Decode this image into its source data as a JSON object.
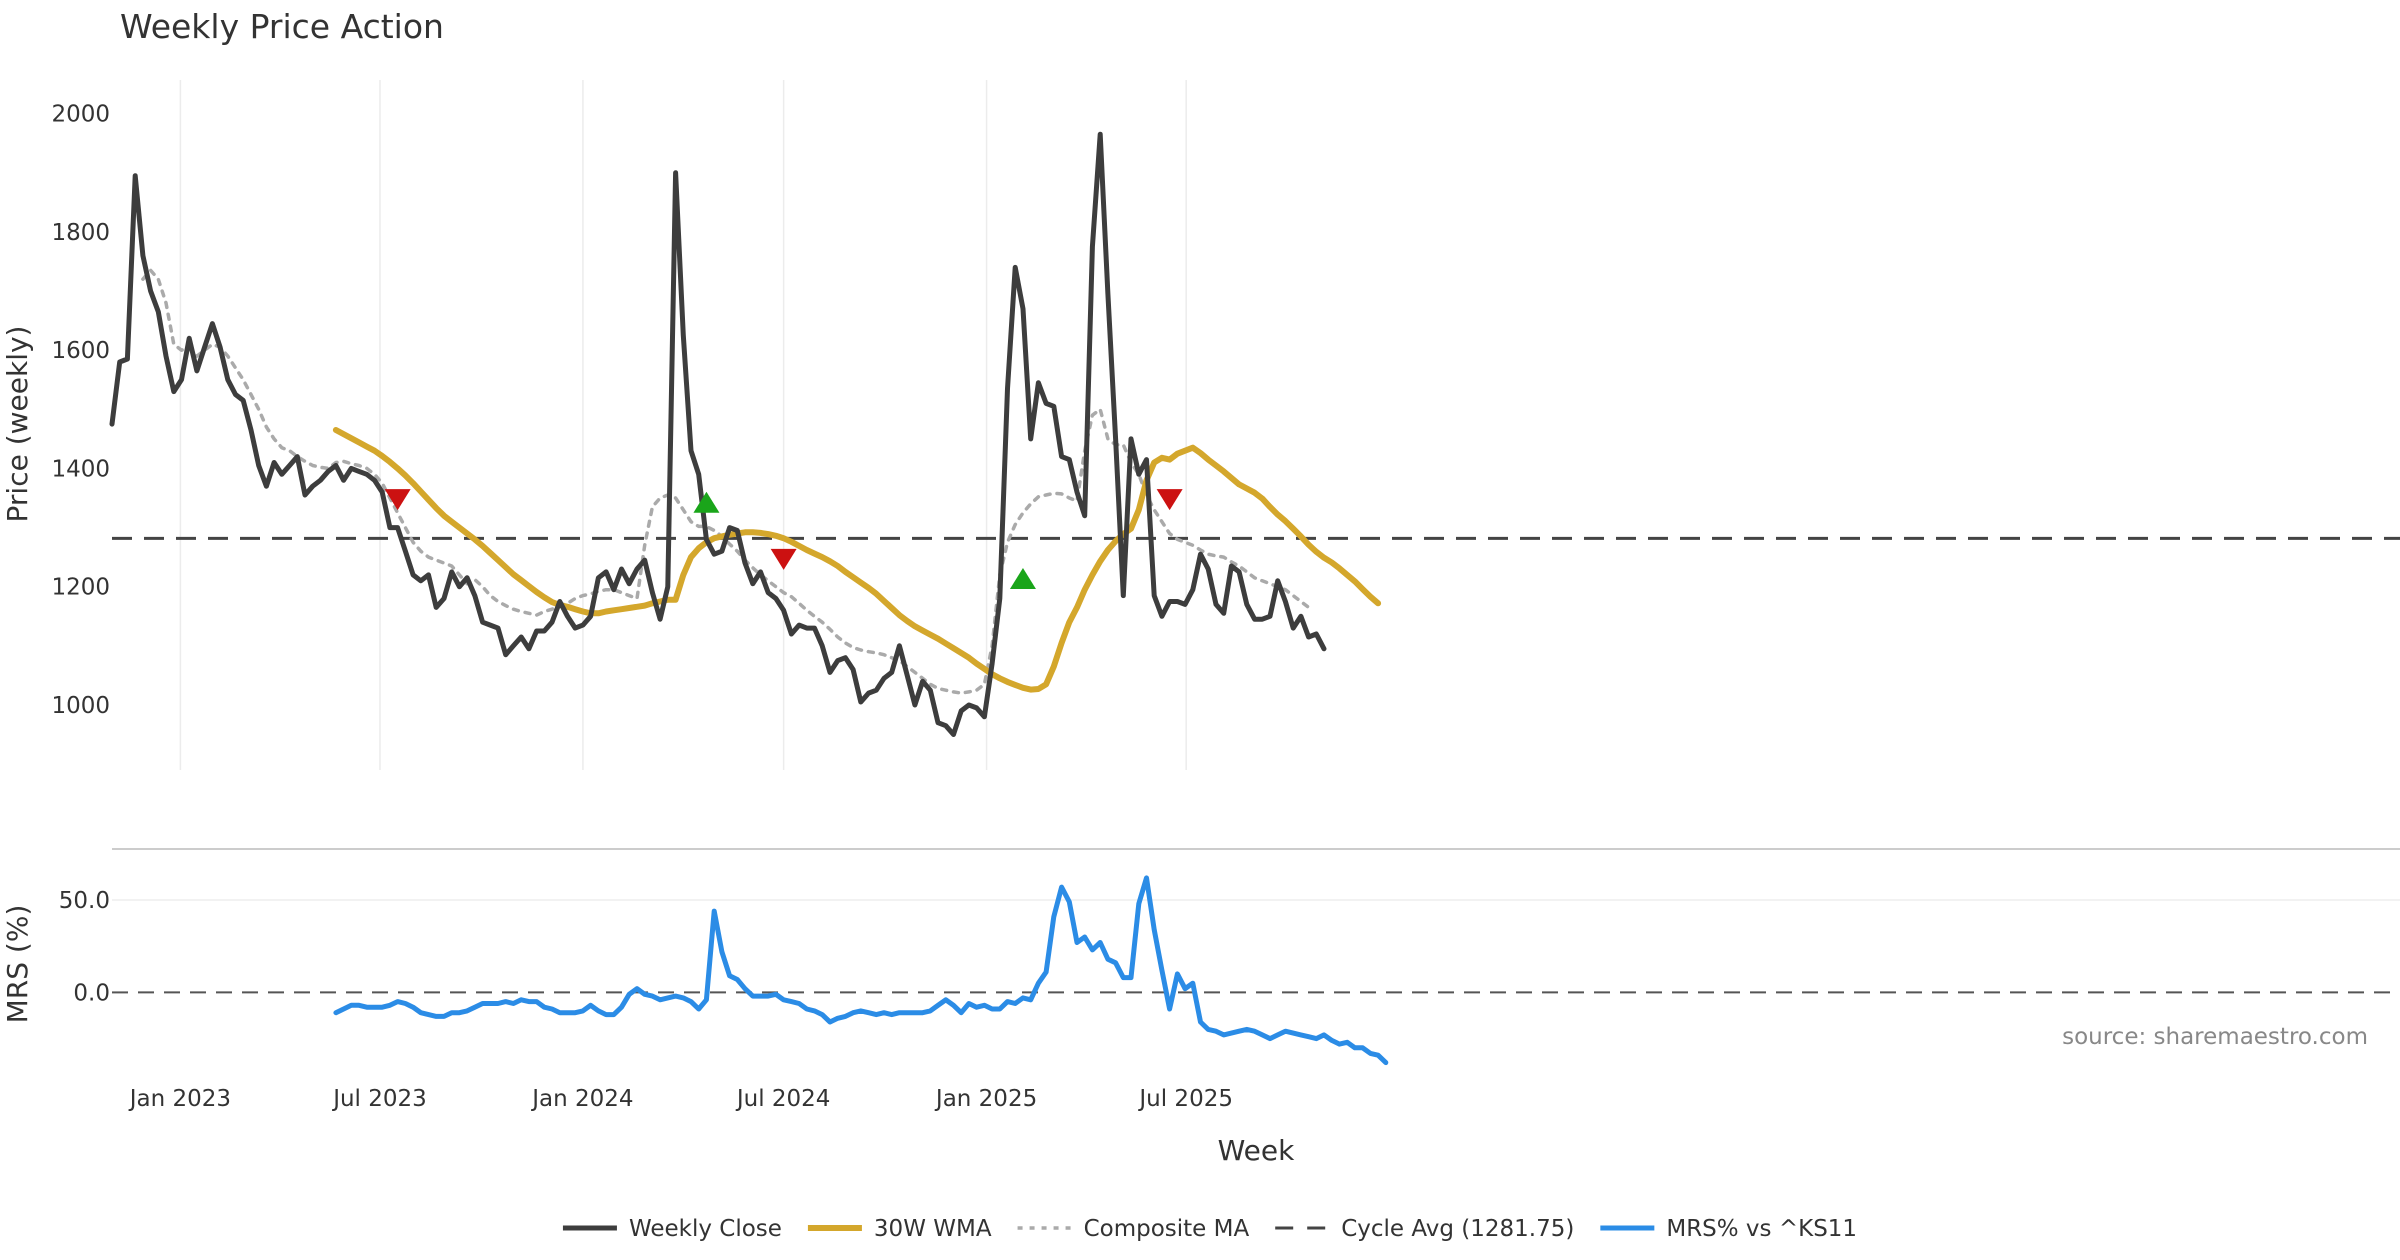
{
  "chart_data": {
    "type": "line",
    "title": "Weekly Price Action",
    "xlabel": "Week",
    "source_note": "source: sharemaestro.com",
    "x_ticks": [
      "Jan 2023",
      "Jul 2023",
      "Jan 2024",
      "Jul 2024",
      "Jan 2025",
      "Jul 2025"
    ],
    "week_start": "2022-10-31",
    "price_panel": {
      "ylabel": "Price (weekly)",
      "y_ticks": [
        "1000",
        "1200",
        "1400",
        "1600",
        "1800",
        "2000"
      ],
      "ylim": [
        890,
        2040
      ],
      "grid": "vertical"
    },
    "mrs_panel": {
      "ylabel": "MRS (%)",
      "y_ticks": [
        "0.0",
        "50.0"
      ],
      "ylim": [
        -42,
        76
      ],
      "zero_line": 0
    },
    "colors": {
      "weekly_close": "#3d3d3d",
      "wma": "#d4a72c",
      "composite": "#aaaaaa",
      "cycle_avg": "#444444",
      "mrs": "#2b8ce6",
      "buy_marker": "#1aa51a",
      "sell_marker": "#cc1111"
    },
    "legend": [
      {
        "key": "weekly_close",
        "label": "Weekly Close",
        "style": "solid"
      },
      {
        "key": "wma",
        "label": "30W WMA",
        "style": "solid"
      },
      {
        "key": "composite",
        "label": "Composite MA",
        "style": "dotted"
      },
      {
        "key": "cycle_avg",
        "label": "Cycle Avg (1281.75)",
        "style": "dashed"
      },
      {
        "key": "mrs",
        "label": "MRS% vs ^KS11",
        "style": "solid"
      }
    ],
    "cycle_avg": 1281.75,
    "series": [
      {
        "name": "Weekly Close",
        "values": [
          1475,
          1580,
          1585,
          1895,
          1760,
          1700,
          1665,
          1590,
          1530,
          1550,
          1620,
          1565,
          1605,
          1645,
          1605,
          1550,
          1525,
          1515,
          1465,
          1405,
          1370,
          1410,
          1390,
          1405,
          1420,
          1355,
          1370,
          1380,
          1395,
          1405,
          1380,
          1400,
          1395,
          1390,
          1380,
          1360,
          1300,
          1300,
          1260,
          1220,
          1210,
          1220,
          1165,
          1180,
          1225,
          1200,
          1215,
          1185,
          1140,
          1135,
          1130,
          1085,
          1100,
          1115,
          1095,
          1125,
          1125,
          1140,
          1175,
          1150,
          1130,
          1135,
          1150,
          1215,
          1225,
          1195,
          1230,
          1205,
          1230,
          1245,
          1190,
          1145,
          1200,
          1900,
          1625,
          1430,
          1390,
          1280,
          1255,
          1260,
          1300,
          1295,
          1240,
          1205,
          1225,
          1190,
          1180,
          1160,
          1120,
          1135,
          1130,
          1130,
          1100,
          1055,
          1075,
          1080,
          1060,
          1005,
          1020,
          1025,
          1045,
          1055,
          1100,
          1050,
          1000,
          1040,
          1025,
          970,
          965,
          950,
          990,
          1000,
          995,
          980,
          1070,
          1180,
          1535,
          1740,
          1670,
          1450,
          1545,
          1510,
          1505,
          1420,
          1415,
          1360,
          1320,
          1775,
          1965,
          1695,
          1450,
          1185,
          1450,
          1390,
          1415,
          1185,
          1150,
          1175,
          1175,
          1170,
          1195,
          1255,
          1230,
          1170,
          1155,
          1235,
          1225,
          1170,
          1145,
          1145,
          1150,
          1210,
          1175,
          1130,
          1150,
          1115,
          1120,
          1095
        ]
      },
      {
        "name": "30W WMA",
        "start_index": 29,
        "values": [
          1465,
          1458,
          1451,
          1444,
          1437,
          1430,
          1421,
          1411,
          1400,
          1388,
          1375,
          1361,
          1347,
          1333,
          1320,
          1310,
          1300,
          1290,
          1280,
          1269,
          1257,
          1245,
          1233,
          1221,
          1211,
          1201,
          1191,
          1182,
          1174,
          1169,
          1166,
          1162,
          1158,
          1155,
          1155,
          1158,
          1160,
          1162,
          1164,
          1166,
          1168,
          1172,
          1175,
          1178,
          1178,
          1220,
          1250,
          1265,
          1275,
          1282,
          1285,
          1288,
          1290,
          1292,
          1292,
          1291,
          1289,
          1286,
          1282,
          1276,
          1269,
          1262,
          1256,
          1250,
          1243,
          1235,
          1225,
          1216,
          1207,
          1198,
          1188,
          1176,
          1164,
          1152,
          1142,
          1133,
          1126,
          1119,
          1112,
          1104,
          1096,
          1088,
          1080,
          1070,
          1061,
          1052,
          1045,
          1039,
          1034,
          1029,
          1026,
          1027,
          1035,
          1065,
          1105,
          1140,
          1165,
          1195,
          1220,
          1243,
          1262,
          1277,
          1289,
          1298,
          1330,
          1380,
          1410,
          1418,
          1415,
          1425,
          1430,
          1435,
          1426,
          1415,
          1405,
          1395,
          1384,
          1373,
          1366,
          1359,
          1349,
          1335,
          1322,
          1311,
          1298,
          1285,
          1271,
          1259,
          1249,
          1241,
          1231,
          1220,
          1209,
          1196,
          1183,
          1172
        ]
      },
      {
        "name": "Composite MA",
        "start_index": 4,
        "values": [
          1720,
          1735,
          1720,
          1680,
          1610,
          1600,
          1605,
          1590,
          1600,
          1610,
          1605,
          1590,
          1570,
          1550,
          1525,
          1500,
          1470,
          1450,
          1435,
          1430,
          1420,
          1412,
          1405,
          1402,
          1400,
          1410,
          1412,
          1408,
          1405,
          1400,
          1390,
          1375,
          1350,
          1325,
          1300,
          1275,
          1260,
          1250,
          1245,
          1240,
          1235,
          1220,
          1205,
          1212,
          1200,
          1185,
          1175,
          1168,
          1162,
          1158,
          1155,
          1152,
          1158,
          1162,
          1168,
          1172,
          1180,
          1185,
          1188,
          1192,
          1195,
          1195,
          1190,
          1185,
          1180,
          1270,
          1335,
          1350,
          1355,
          1350,
          1330,
          1310,
          1302,
          1302,
          1295,
          1285,
          1272,
          1260,
          1245,
          1232,
          1220,
          1210,
          1200,
          1190,
          1183,
          1172,
          1160,
          1150,
          1140,
          1128,
          1115,
          1105,
          1097,
          1093,
          1090,
          1088,
          1085,
          1080,
          1075,
          1065,
          1055,
          1045,
          1035,
          1028,
          1025,
          1022,
          1020,
          1022,
          1025,
          1035,
          1100,
          1220,
          1275,
          1305,
          1325,
          1340,
          1352,
          1355,
          1358,
          1357,
          1350,
          1345,
          1430,
          1490,
          1500,
          1450,
          1440,
          1440,
          1410,
          1390,
          1355,
          1330,
          1310,
          1290,
          1280,
          1275,
          1270,
          1262,
          1255,
          1252,
          1250,
          1242,
          1235,
          1225,
          1215,
          1210,
          1205,
          1200,
          1195,
          1185,
          1175,
          1165
        ]
      },
      {
        "name": "MRS% vs ^KS11",
        "start_index": 29,
        "values": [
          -11,
          -9,
          -7,
          -7,
          -8,
          -8,
          -8,
          -7,
          -5,
          -6,
          -8,
          -11,
          -12,
          -13,
          -13,
          -11,
          -11,
          -10,
          -8,
          -6,
          -6,
          -6,
          -5,
          -6,
          -4,
          -5,
          -5,
          -8,
          -9,
          -11,
          -11,
          -11,
          -10,
          -7,
          -10,
          -12,
          -12,
          -8,
          -1,
          2,
          -1,
          -2,
          -4,
          -3,
          -2,
          -3,
          -5,
          -9,
          -4,
          44,
          22,
          9,
          7,
          2,
          -2,
          -2,
          -2,
          -1,
          -4,
          -5,
          -6,
          -9,
          -10,
          -12,
          -16,
          -14,
          -13,
          -11,
          -10,
          -11,
          -12,
          -11,
          -12,
          -11,
          -11,
          -11,
          -11,
          -10,
          -7,
          -4,
          -7,
          -11,
          -6,
          -8,
          -7,
          -9,
          -9,
          -5,
          -6,
          -3,
          -4,
          5,
          11,
          41,
          57,
          49,
          27,
          30,
          23,
          27,
          18,
          16,
          8,
          8,
          48,
          62,
          34,
          12,
          -9,
          10,
          2,
          5,
          -16,
          -20,
          -21,
          -23,
          -22,
          -21,
          -20,
          -21,
          -23,
          -25,
          -23,
          -21,
          -22,
          -23,
          -24,
          -25,
          -23,
          -26,
          -28,
          -27,
          -30,
          -30,
          -33,
          -34,
          -38
        ]
      }
    ],
    "markers": [
      {
        "type": "sell",
        "index": 37,
        "value": 1348
      },
      {
        "type": "buy",
        "index": 77,
        "value": 1342
      },
      {
        "type": "sell",
        "index": 87,
        "value": 1247
      },
      {
        "type": "buy",
        "index": 118,
        "value": 1213
      },
      {
        "type": "sell",
        "index": 137,
        "value": 1348
      }
    ]
  }
}
